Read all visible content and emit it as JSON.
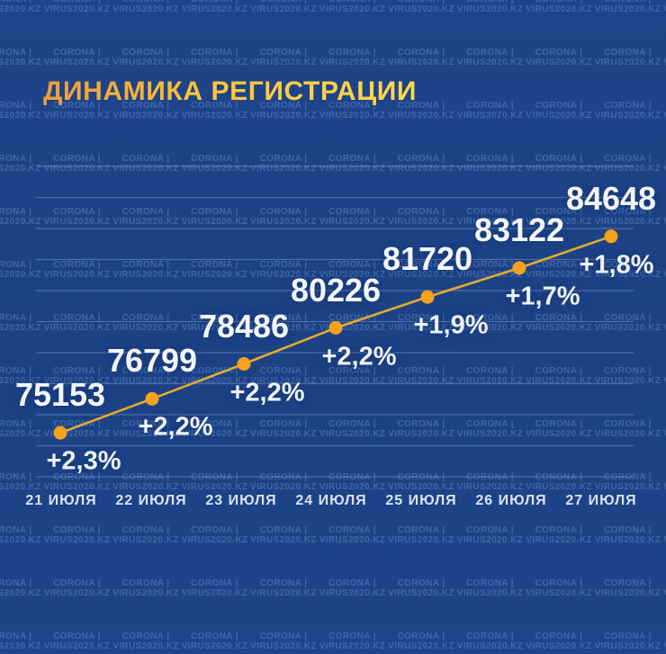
{
  "title": "ДИНАМИКА РЕГИСТРАЦИИ",
  "watermark": {
    "line1": "CORONA |",
    "line2": "VIRUS2020.KZ"
  },
  "colors": {
    "background": "#1d4387",
    "title_gradient_start": "#ee9c3a",
    "title_gradient_end": "#ffd94e",
    "line": "#e5ac28",
    "dot": "#f6a21d",
    "value_text": "#f3f6fc",
    "delta_text": "#edf2fa",
    "date_text": "#d9e3f2",
    "gridline": "rgba(205,220,245,0.28)"
  },
  "chart_data": {
    "type": "line",
    "title": "ДИНАМИКА РЕГИСТРАЦИИ",
    "categories": [
      "21 ИЮЛЯ",
      "22 ИЮЛЯ",
      "23 ИЮЛЯ",
      "24 ИЮЛЯ",
      "25 ИЮЛЯ",
      "26 ИЮЛЯ",
      "27 ИЮЛЯ"
    ],
    "values": [
      75153,
      76799,
      78486,
      80226,
      81720,
      83122,
      84648
    ],
    "value_labels": [
      "75153",
      "76799",
      "78486",
      "80226",
      "81720",
      "83122",
      "84648"
    ],
    "delta_labels": [
      "+2,3%",
      "+2,2%",
      "+2,2%",
      "+2,2%",
      "+1,9%",
      "+1,7%",
      "+1,8%"
    ],
    "xlabel": "",
    "ylabel": "",
    "ylim": [
      72900,
      87900
    ],
    "grid": true,
    "legend": false
  }
}
